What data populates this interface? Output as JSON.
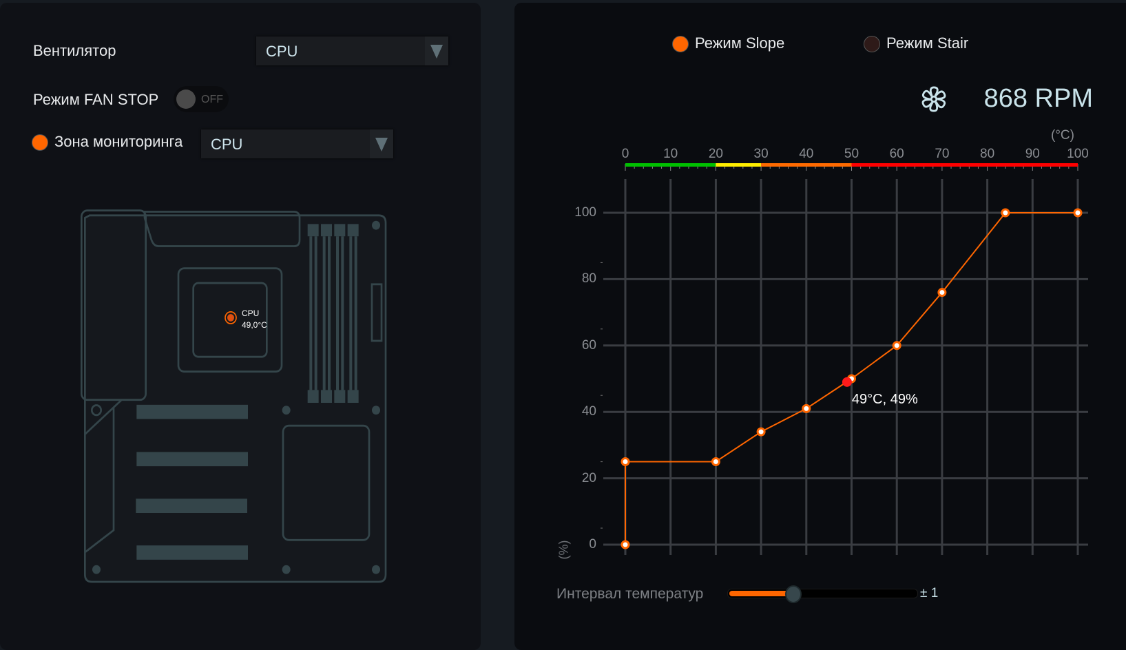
{
  "left": {
    "fan_label": "Вентилятор",
    "fan_select": "CPU",
    "fan_stop_label": "Режим FAN STOP",
    "fan_stop_toggle": "OFF",
    "monitor_zone_label": "Зона мониторинга",
    "monitor_zone_select": "CPU",
    "sensor": {
      "name": "CPU",
      "temp": "49,0°C"
    }
  },
  "right": {
    "mode_slope": "Режим Slope",
    "mode_stair": "Режим Stair",
    "selected_mode": "slope",
    "rpm": "868 RPM",
    "fan_icon": "fan-icon",
    "interval_label": "Интервал температур",
    "interval_value": "± 1",
    "interval_fill_percent": 34
  },
  "colors": {
    "accent": "#ff6600",
    "stair_radio": "#2e1a18",
    "text_value": "#c9e3ea"
  },
  "chart_data": {
    "type": "line",
    "xlabel": "(°C)",
    "ylabel": "(%)",
    "xlim": [
      0,
      100
    ],
    "ylim": [
      0,
      100
    ],
    "x_ticks": [
      "0",
      "10",
      "20",
      "30",
      "40",
      "50",
      "60",
      "70",
      "80",
      "90",
      "100"
    ],
    "y_ticks": [
      "0",
      "20",
      "40",
      "60",
      "80",
      "100"
    ],
    "grid": true,
    "temp_bar": [
      {
        "from": 0,
        "to": 20,
        "color": "#00c000"
      },
      {
        "from": 20,
        "to": 30,
        "color": "#ffee00"
      },
      {
        "from": 30,
        "to": 50,
        "color": "#ff6a00"
      },
      {
        "from": 50,
        "to": 100,
        "color": "#ff0000"
      }
    ],
    "points": [
      [
        0,
        0
      ],
      [
        0,
        25
      ],
      [
        20,
        25
      ],
      [
        30,
        34
      ],
      [
        40,
        41
      ],
      [
        50,
        50
      ],
      [
        60,
        60
      ],
      [
        70,
        76
      ],
      [
        84,
        100
      ],
      [
        100,
        100
      ]
    ],
    "current": {
      "x": 49,
      "y": 49,
      "label": "49°C, 49%"
    }
  }
}
